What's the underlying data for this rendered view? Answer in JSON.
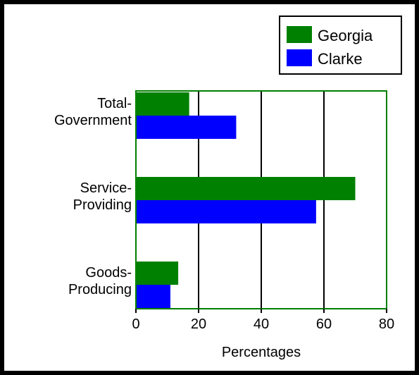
{
  "chart_data": {
    "type": "bar",
    "orientation": "horizontal",
    "categories": [
      "Total-Government",
      "Service-Providing",
      "Goods-Producing"
    ],
    "category_label_lines": [
      [
        "Total-",
        "Government"
      ],
      [
        "Service-",
        "Providing"
      ],
      [
        "Goods-",
        "Producing"
      ]
    ],
    "series": [
      {
        "name": "Georgia",
        "color": "#008000",
        "values": [
          17,
          70,
          13.5
        ]
      },
      {
        "name": "Clarke",
        "color": "#0000ff",
        "values": [
          32,
          57.5,
          11
        ]
      }
    ],
    "xlabel": "Percentages",
    "xlim": [
      0,
      80
    ],
    "xticks": [
      0,
      20,
      40,
      60,
      80
    ],
    "grid": "vertical",
    "legend_position": "top-right",
    "colors": {
      "frame": "#000000",
      "plot_border": "#008000",
      "background": "#ffffff"
    }
  }
}
